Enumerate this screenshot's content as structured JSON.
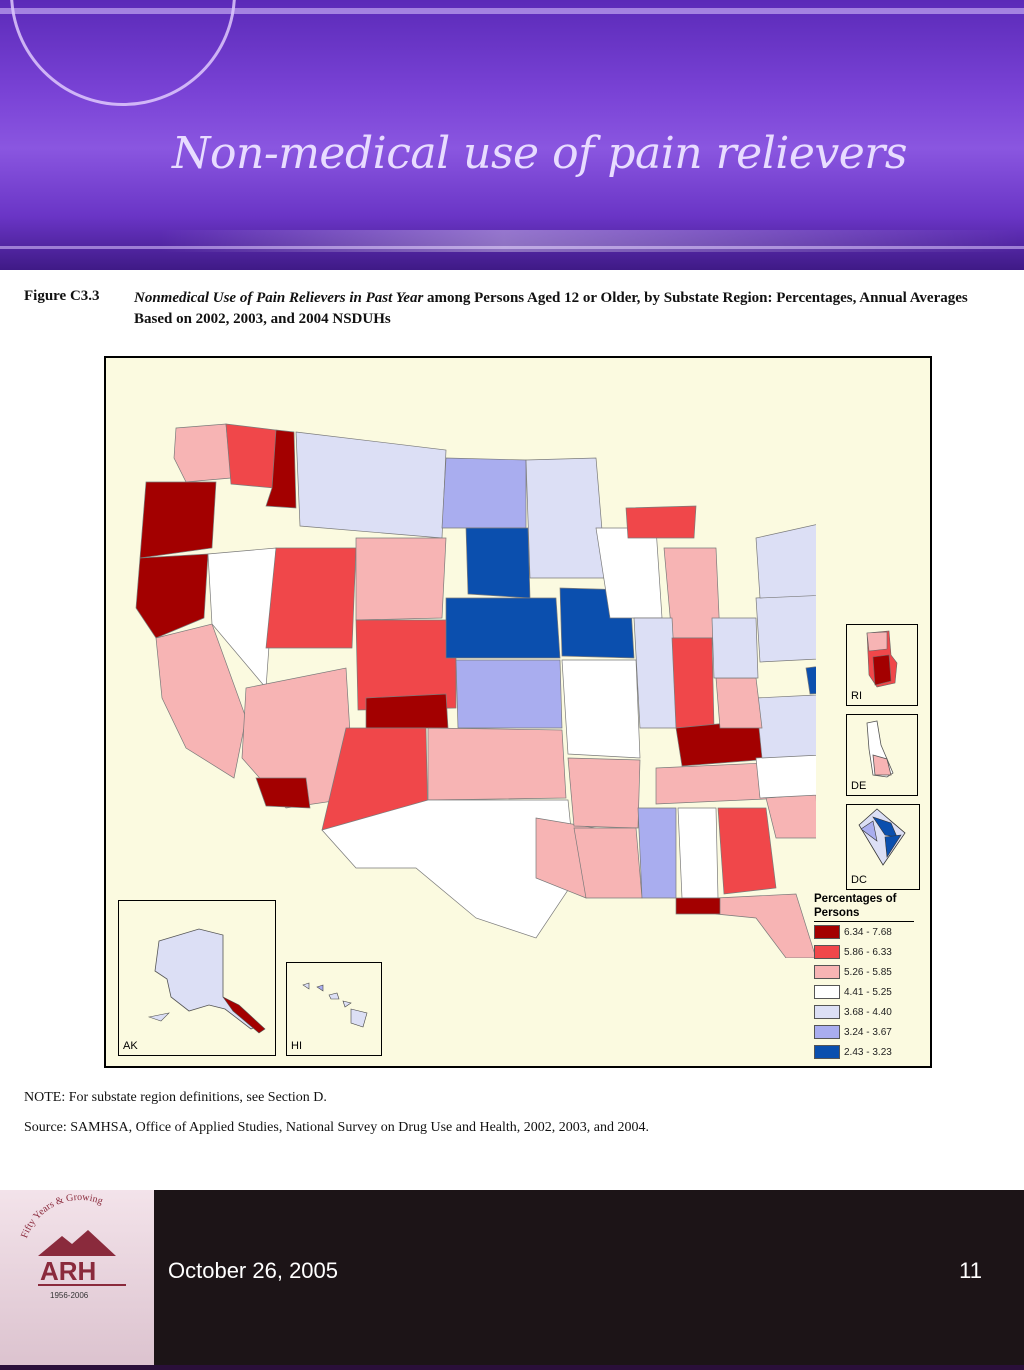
{
  "slide": {
    "title": "Non-medical use of pain relievers",
    "footer_date": "October 26, 2005",
    "page_number": "11"
  },
  "logo": {
    "tagline": "Fifty Years & Growing",
    "name": "ARH",
    "years": "1956-2006"
  },
  "figure": {
    "label": "Figure C3.3",
    "caption_italic": "Nonmedical Use of Pain Relievers in Past Year",
    "caption_rest": " among Persons Aged 12 or Older, by Substate Region: Percentages, Annual Averages Based on 2002, 2003, and 2004 NSDUHs",
    "note": "NOTE: For substate region definitions, see Section D.",
    "source": "Source: SAMHSA, Office of Applied Studies, National Survey on Drug Use and Health, 2002, 2003, and 2004."
  },
  "insets": {
    "ri": "RI",
    "de": "DE",
    "dc": "DC",
    "ak": "AK",
    "hi": "HI"
  },
  "legend": {
    "title": "Percentages of Persons",
    "classes": [
      {
        "label": "6.34 - 7.68",
        "color": "#a30000"
      },
      {
        "label": "5.86 - 6.33",
        "color": "#f0474a"
      },
      {
        "label": "5.26 - 5.85",
        "color": "#f7b4b4"
      },
      {
        "label": "4.41 - 5.25",
        "color": "#ffffff"
      },
      {
        "label": "3.68 - 4.40",
        "color": "#dcdff5"
      },
      {
        "label": "3.24 - 3.67",
        "color": "#a9adef"
      },
      {
        "label": "2.43 - 3.23",
        "color": "#0b4fae"
      }
    ]
  },
  "regions": [
    {
      "name": "wa-west",
      "class": 2
    },
    {
      "name": "wa-east",
      "class": 1
    },
    {
      "name": "id-north",
      "class": 0
    },
    {
      "name": "or-west",
      "class": 0
    },
    {
      "name": "ca-north",
      "class": 0
    },
    {
      "name": "ca-central",
      "class": 2
    },
    {
      "name": "nv",
      "class": 3
    },
    {
      "name": "ut",
      "class": 1
    },
    {
      "name": "az",
      "class": 2
    },
    {
      "name": "az-south",
      "class": 0
    },
    {
      "name": "mt",
      "class": 4
    },
    {
      "name": "wy",
      "class": 2
    },
    {
      "name": "co",
      "class": 1
    },
    {
      "name": "co-south",
      "class": 0
    },
    {
      "name": "nm",
      "class": 1
    },
    {
      "name": "nd",
      "class": 5
    },
    {
      "name": "sd",
      "class": 6
    },
    {
      "name": "ne",
      "class": 6
    },
    {
      "name": "ks",
      "class": 5
    },
    {
      "name": "ok",
      "class": 2
    },
    {
      "name": "tx",
      "class": 3
    },
    {
      "name": "tx-east",
      "class": 2
    },
    {
      "name": "mn",
      "class": 4
    },
    {
      "name": "ia",
      "class": 6
    },
    {
      "name": "mo",
      "class": 3
    },
    {
      "name": "ar",
      "class": 2
    },
    {
      "name": "la",
      "class": 2
    },
    {
      "name": "wi",
      "class": 3
    },
    {
      "name": "mi",
      "class": 2
    },
    {
      "name": "mi-up",
      "class": 1
    },
    {
      "name": "il",
      "class": 4
    },
    {
      "name": "in",
      "class": 1
    },
    {
      "name": "ky",
      "class": 0
    },
    {
      "name": "tn",
      "class": 2
    },
    {
      "name": "ms",
      "class": 5
    },
    {
      "name": "al",
      "class": 3
    },
    {
      "name": "ga",
      "class": 1
    },
    {
      "name": "fl",
      "class": 2
    },
    {
      "name": "fl-panhandle",
      "class": 0
    },
    {
      "name": "sc",
      "class": 2
    },
    {
      "name": "nc",
      "class": 3
    },
    {
      "name": "va",
      "class": 4
    },
    {
      "name": "wv",
      "class": 2
    },
    {
      "name": "oh",
      "class": 4
    },
    {
      "name": "pa",
      "class": 4
    },
    {
      "name": "ny",
      "class": 4
    },
    {
      "name": "new-england",
      "class": 4
    },
    {
      "name": "md",
      "class": 6
    }
  ]
}
